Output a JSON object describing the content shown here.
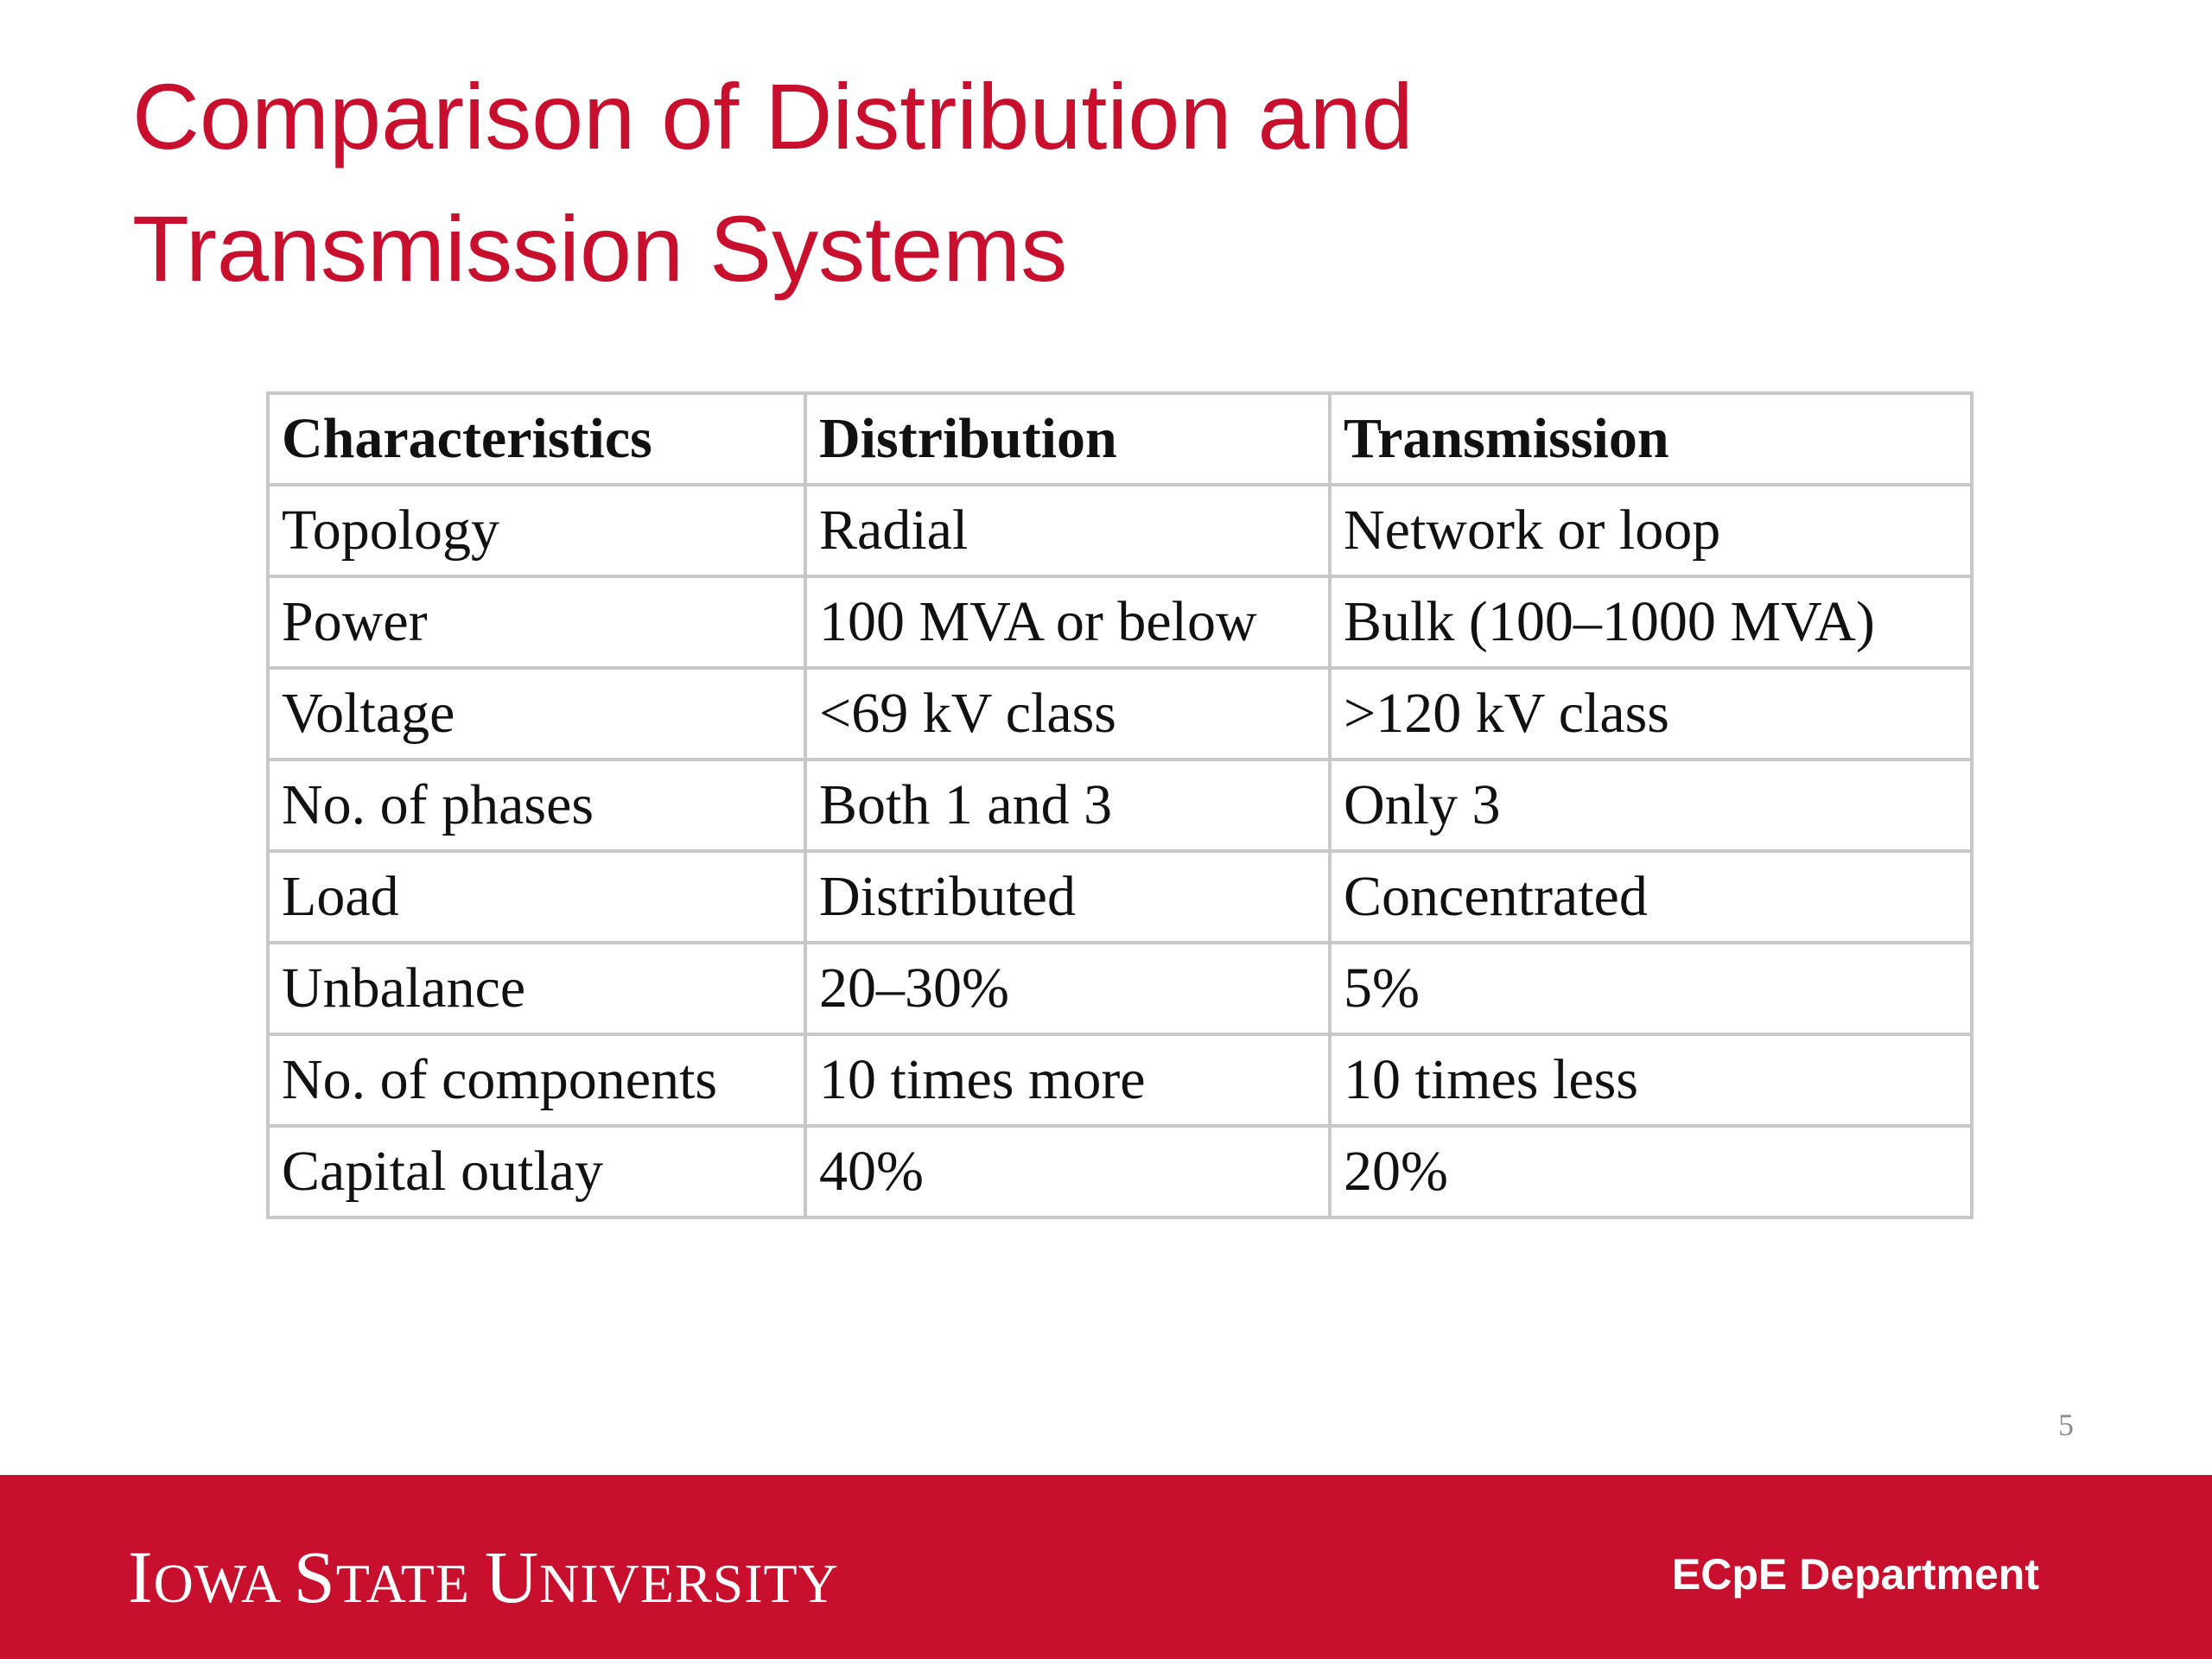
{
  "slide": {
    "title_line1": "Comparison of Distribution and",
    "title_line2": "Transmission Systems",
    "page_number": "5"
  },
  "table": {
    "headers": [
      "Characteristics",
      "Distribution",
      "Transmission"
    ],
    "rows": [
      [
        "Topology",
        "Radial",
        "Network or loop"
      ],
      [
        "Power",
        "100 MVA or below",
        "Bulk (100–1000 MVA)"
      ],
      [
        "Voltage",
        "<69 kV class",
        ">120 kV class"
      ],
      [
        "No. of phases",
        "Both 1 and 3",
        "Only 3"
      ],
      [
        "Load",
        "Distributed",
        "Concentrated"
      ],
      [
        "Unbalance",
        "20–30%",
        "5%"
      ],
      [
        "No. of components",
        "10 times more",
        "10 times less"
      ],
      [
        "Capital outlay",
        "40%",
        "20%"
      ]
    ]
  },
  "footer": {
    "logo_text": "Iowa State University",
    "department": "ECpE Department",
    "background_color": "#c8102e"
  }
}
